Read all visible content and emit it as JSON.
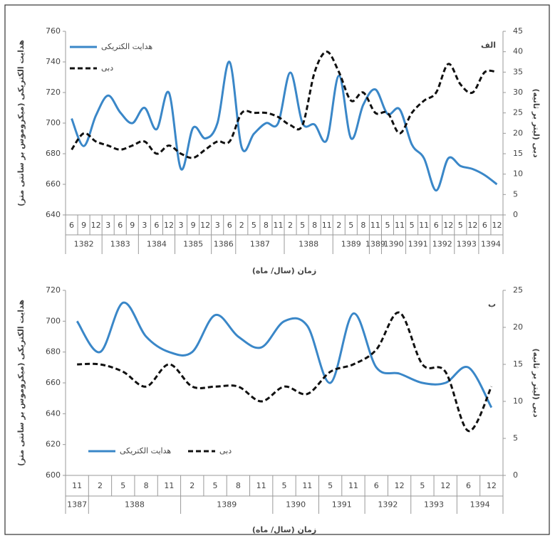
{
  "charts": [
    {
      "type": "line",
      "label": "الف",
      "legend": "upper left",
      "y_label": "هدایت الکتریکی (میکروموس بر سانتی متر)",
      "y2_label": "دبی (لیتر بر ثانیه)",
      "x_label": "زمان (سال/ ماه)",
      "year_groups": [
        {
          "year": "1382",
          "months": [
            "6",
            "9",
            "12"
          ]
        },
        {
          "year": "1383",
          "months": [
            "3",
            "6",
            "9"
          ]
        },
        {
          "year": "1384",
          "months": [
            "3",
            "6",
            "12"
          ]
        },
        {
          "year": "1385",
          "months": [
            "3",
            "9",
            "12"
          ]
        },
        {
          "year": "1386",
          "months": [
            "3",
            "6"
          ]
        },
        {
          "year": "1387",
          "months": [
            "2",
            "5",
            "8",
            "11"
          ]
        },
        {
          "year": "1388",
          "months": [
            "2",
            "5",
            "8",
            "11"
          ]
        },
        {
          "year": "1389",
          "months": [
            "2",
            "5",
            "8"
          ]
        },
        {
          "year": "1389",
          "months": [
            "11"
          ]
        },
        {
          "year": "1390",
          "months": [
            "5",
            "11"
          ]
        },
        {
          "year": "1391",
          "months": [
            "5",
            "11"
          ]
        },
        {
          "year": "1392",
          "months": [
            "6",
            "12"
          ]
        },
        {
          "year": "1393",
          "months": [
            "5",
            "12"
          ]
        },
        {
          "year": "1394",
          "months": [
            "6",
            "12"
          ]
        }
      ],
      "ylim": [
        640,
        760
      ],
      "yticks": [
        640,
        660,
        680,
        700,
        720,
        740,
        760
      ],
      "y2lim": [
        0,
        45
      ],
      "y2ticks": [
        0,
        5,
        10,
        15,
        20,
        25,
        30,
        35,
        40,
        45
      ],
      "series": [
        {
          "name": "هدایت الکتریکی",
          "color": "#3a87c8",
          "dash": false,
          "values": [
            703,
            685,
            705,
            718,
            707,
            700,
            710,
            696,
            720,
            670,
            697,
            690,
            700,
            740,
            684,
            693,
            700,
            700,
            733,
            700,
            699,
            689,
            731,
            690,
            712,
            722,
            706,
            709,
            686,
            677,
            656,
            677,
            672,
            670,
            666,
            660
          ]
        },
        {
          "name": "دبی",
          "color": "#111111",
          "dash": true,
          "axis": "y2",
          "values": [
            16,
            20,
            18,
            17,
            16,
            17,
            18,
            15,
            17,
            15,
            14,
            16,
            18,
            18,
            25,
            25,
            25,
            24,
            22,
            22,
            35,
            40,
            35,
            28,
            30,
            25,
            25,
            20,
            25,
            28,
            30,
            37,
            32,
            30,
            35,
            35
          ]
        }
      ]
    },
    {
      "type": "line",
      "label": "ب",
      "legend": "lower left",
      "y_label": "هدایت الکتریکی (میکروموس بر سانتی متر)",
      "y2_label": "دبی (لیتر بر ثانیه)",
      "x_label": "زمان (سال/ ماه)",
      "year_groups": [
        {
          "year": "1387",
          "months": [
            "11"
          ]
        },
        {
          "year": "1388",
          "months": [
            "2",
            "5",
            "8",
            "11"
          ]
        },
        {
          "year": "1389",
          "months": [
            "2",
            "5",
            "8",
            "11"
          ]
        },
        {
          "year": "1390",
          "months": [
            "5",
            "11"
          ]
        },
        {
          "year": "1391",
          "months": [
            "5",
            "11"
          ]
        },
        {
          "year": "1392",
          "months": [
            "6",
            "12"
          ]
        },
        {
          "year": "1393",
          "months": [
            "5",
            "12"
          ]
        },
        {
          "year": "1394",
          "months": [
            "6",
            "12"
          ]
        }
      ],
      "ylim": [
        600,
        720
      ],
      "yticks": [
        600,
        620,
        640,
        660,
        680,
        700,
        720
      ],
      "y2lim": [
        0,
        25
      ],
      "y2ticks": [
        0,
        5,
        10,
        15,
        20,
        25
      ],
      "series": [
        {
          "name": "هدایت الکتریکی",
          "color": "#3a87c8",
          "dash": false,
          "values": [
            700,
            680,
            712,
            690,
            680,
            680,
            704,
            690,
            683,
            700,
            697,
            660,
            705,
            670,
            666,
            660,
            660,
            670,
            644
          ]
        },
        {
          "name": "دبی",
          "color": "#111111",
          "dash": true,
          "axis": "y2",
          "values": [
            15,
            15,
            14,
            12,
            15,
            12,
            12,
            12,
            10,
            12,
            11,
            14,
            15,
            17,
            22,
            15,
            14,
            6,
            12
          ]
        }
      ]
    }
  ]
}
